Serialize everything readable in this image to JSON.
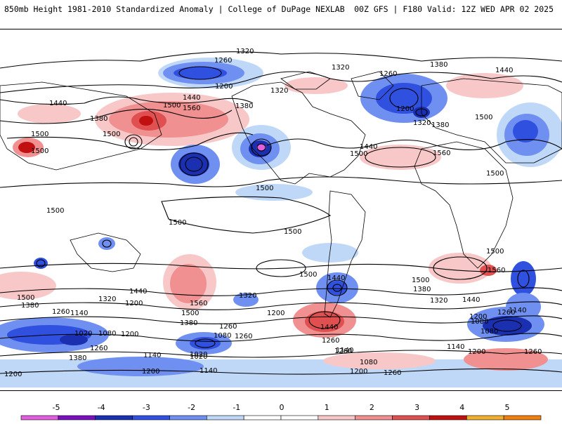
{
  "header": {
    "title_left": "850mb Height 1981-2010 Standardized Anomaly | College of DuPage NEXLAB",
    "title_right": "00Z GFS | F180 Valid: 12Z WED APR 02 2025"
  },
  "colorbar": {
    "ticks": [
      "-5",
      "-4",
      "-3",
      "-2",
      "-1",
      "0",
      "1",
      "2",
      "3",
      "4",
      "5"
    ],
    "colors": [
      "#e060e0",
      "#7a10c0",
      "#1a30b0",
      "#3050e0",
      "#6f90f0",
      "#c0d8f8",
      "#ffffff",
      "#ffffff",
      "#f8c8c8",
      "#f09090",
      "#e05050",
      "#c01010",
      "#f0b030",
      "#f08010"
    ]
  },
  "map": {
    "contour_labels": [
      "1320",
      "1260",
      "1200",
      "1320",
      "1320",
      "1260",
      "1380",
      "1440",
      "1440",
      "1500",
      "1560",
      "1380",
      "1440",
      "1380",
      "1500",
      "1500",
      "1500",
      "1200",
      "1320",
      "1380",
      "1500",
      "1440",
      "1560",
      "1500",
      "1500",
      "1500",
      "1500",
      "1500",
      "1500",
      "1500",
      "1500",
      "1440",
      "1500",
      "1380",
      "1560",
      "1320",
      "1500",
      "1380",
      "1260",
      "1320",
      "1200",
      "1440",
      "1560",
      "1500",
      "1380",
      "1320",
      "1260",
      "1200",
      "1440",
      "1260",
      "1440",
      "1140",
      "1200",
      "1140",
      "1020",
      "1080",
      "1200",
      "1260",
      "1380",
      "1140",
      "1080",
      "1020",
      "1260",
      "1140",
      "1080",
      "1260",
      "1200",
      "1140",
      "1200",
      "1260",
      "1080",
      "1020",
      "1200",
      "1140",
      "1260",
      "1080",
      "1200",
      "1260"
    ]
  }
}
